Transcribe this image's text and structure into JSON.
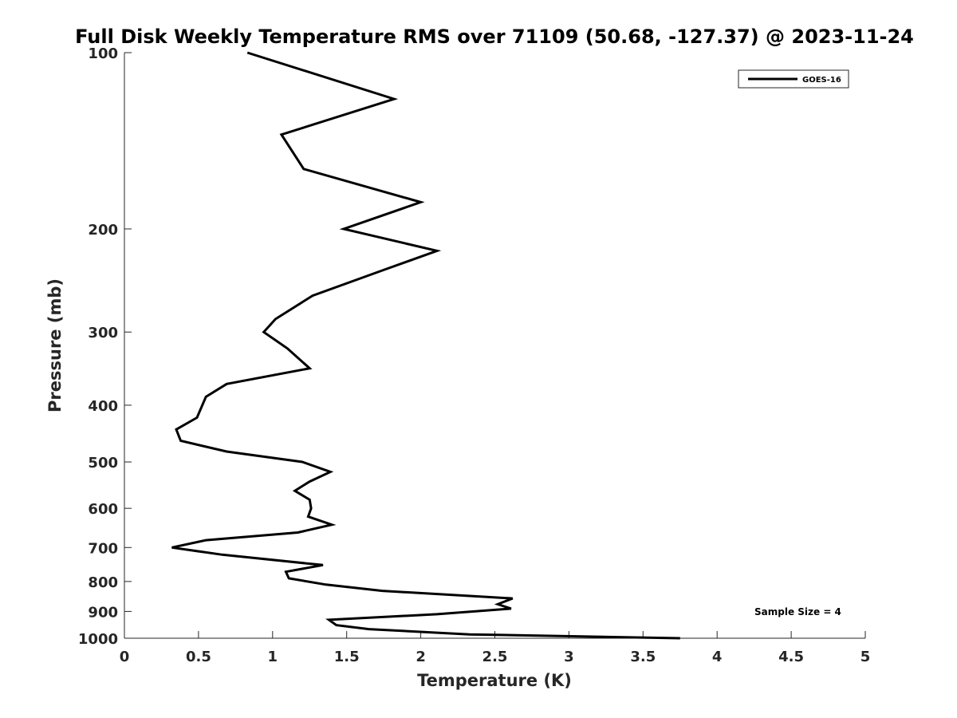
{
  "chart_data": {
    "type": "line",
    "title": "Full Disk Weekly Temperature RMS over 71109 (50.68, -127.37) @ 2023-11-24",
    "xlabel": "Temperature (K)",
    "ylabel": "Pressure (mb)",
    "xlim": [
      0,
      5
    ],
    "ylim": [
      100,
      1000
    ],
    "y_scale": "log",
    "y_reversed": true,
    "x_ticks": [
      "0",
      "0.5",
      "1",
      "1.5",
      "2",
      "2.5",
      "3",
      "3.5",
      "4",
      "4.5",
      "5"
    ],
    "y_ticks": [
      "100",
      "200",
      "300",
      "400",
      "500",
      "600",
      "700",
      "800",
      "900",
      "1000"
    ],
    "grid": false,
    "legend_position": "top-right",
    "annotation": "Sample Size = 4",
    "series": [
      {
        "name": "GOES-16",
        "color": "#000000",
        "x": [
          0.83,
          1.82,
          1.06,
          1.21,
          2.0,
          1.48,
          2.11,
          1.75,
          1.27,
          1.02,
          0.94,
          1.1,
          1.25,
          0.69,
          0.55,
          0.49,
          0.35,
          0.38,
          0.69,
          1.2,
          1.39,
          1.25,
          1.15,
          1.25,
          1.26,
          1.24,
          1.4,
          1.17,
          0.55,
          0.32,
          0.66,
          1.34,
          1.09,
          1.11,
          1.36,
          1.74,
          2.62,
          2.52,
          2.61,
          2.11,
          1.38,
          1.43,
          1.65,
          2.33,
          3.75
        ],
        "y": [
          100,
          120,
          138,
          158,
          180,
          200,
          218,
          235,
          260,
          285,
          300,
          320,
          346,
          368,
          387,
          420,
          440,
          460,
          480,
          500,
          520,
          540,
          560,
          580,
          600,
          620,
          640,
          660,
          680,
          700,
          720,
          750,
          770,
          790,
          810,
          830,
          855,
          875,
          890,
          910,
          930,
          950,
          965,
          985,
          1000
        ]
      }
    ]
  }
}
